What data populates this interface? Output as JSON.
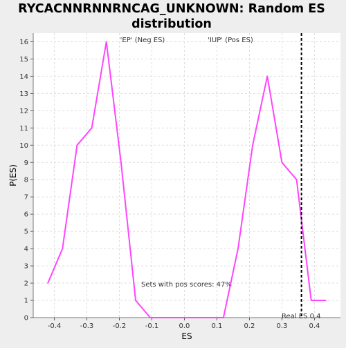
{
  "chart_data": {
    "type": "line",
    "title_lines": [
      "RYCACNNRNNRNCAG_UNKNOWN: Random ES",
      "distribution"
    ],
    "xlabel": "ES",
    "ylabel": "P(ES)",
    "xlim": [
      -0.465,
      0.48
    ],
    "ylim": [
      0,
      16.5
    ],
    "x_ticks": [
      -0.4,
      -0.3,
      -0.2,
      -0.1,
      0.0,
      0.1,
      0.2,
      0.3,
      0.4
    ],
    "x_tick_labels": [
      "-0.4",
      "-0.3",
      "-0.2",
      "-0.1",
      "0.0",
      "0.1",
      "0.2",
      "0.3",
      "0.4"
    ],
    "y_ticks": [
      0,
      1,
      2,
      3,
      4,
      5,
      6,
      7,
      8,
      9,
      10,
      11,
      12,
      13,
      14,
      15,
      16
    ],
    "y_tick_labels": [
      "0",
      "1",
      "2",
      "3",
      "4",
      "5",
      "6",
      "7",
      "8",
      "9",
      "10",
      "11",
      "12",
      "13",
      "14",
      "15",
      "16"
    ],
    "grid": true,
    "series": [
      {
        "color": "#ff44ff",
        "x": [
          -0.42,
          -0.375,
          -0.33,
          -0.285,
          -0.24,
          -0.195,
          -0.15,
          -0.105,
          -0.06,
          -0.015,
          0.03,
          0.075,
          0.12,
          0.165,
          0.21,
          0.255,
          0.3,
          0.345,
          0.39,
          0.435
        ],
        "values": [
          2,
          4,
          10,
          11,
          16,
          9,
          1,
          0,
          0,
          0,
          0,
          0,
          0,
          4,
          10,
          14,
          9,
          8,
          1,
          1
        ]
      }
    ],
    "real_es": 0.36,
    "real_es_label": "Real ES 0.4",
    "ep_label": "'EP' (Neg ES)",
    "iup_label": "'IUP' (Pos ES)",
    "pos_scores_note": "Sets with pos scores: 47%",
    "colors": {
      "series": "#ff44ff",
      "ep": "#3333cc",
      "iup": "#dd2222",
      "grid": "#dddddd",
      "plot_bg": "#ffffff",
      "page_bg": "#eeeeee"
    }
  }
}
